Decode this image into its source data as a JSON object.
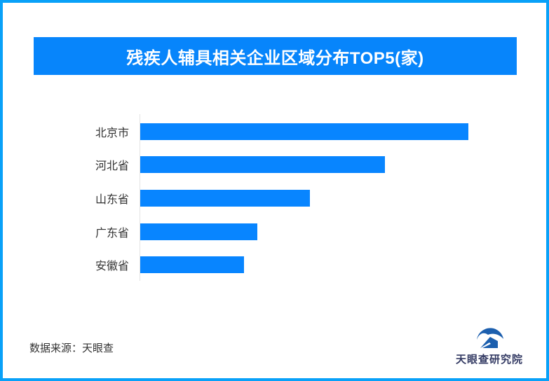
{
  "page": {
    "border_color": "#09a1f8",
    "background": "#ffffff"
  },
  "header": {
    "title": "残疾人辅具相关企业区域分布TOP5(家)",
    "background": "#0785fb",
    "text_color": "#ffffff"
  },
  "chart_data": {
    "type": "bar",
    "orientation": "horizontal",
    "title": "残疾人辅具相关企业区域分布TOP5(家)",
    "unit": "家",
    "categories": [
      "北京市",
      "河北省",
      "山东省",
      "广东省",
      "安徽省"
    ],
    "values_relative_pct": [
      100,
      74.6,
      51.7,
      35.7,
      31.6
    ],
    "value_labels_shown": false,
    "axis_tick_labels_shown": false,
    "grid": false,
    "legend": false,
    "bar_color": "#0885ff",
    "axis_line_color": "#e3e3e3"
  },
  "footer": {
    "source_text": "数据来源：天眼查",
    "logo_text": "天眼查研究院",
    "logo_icon": "tianyancha-eye-icon",
    "logo_color": "#1c5fae",
    "logo_text_color": "#333a63"
  }
}
